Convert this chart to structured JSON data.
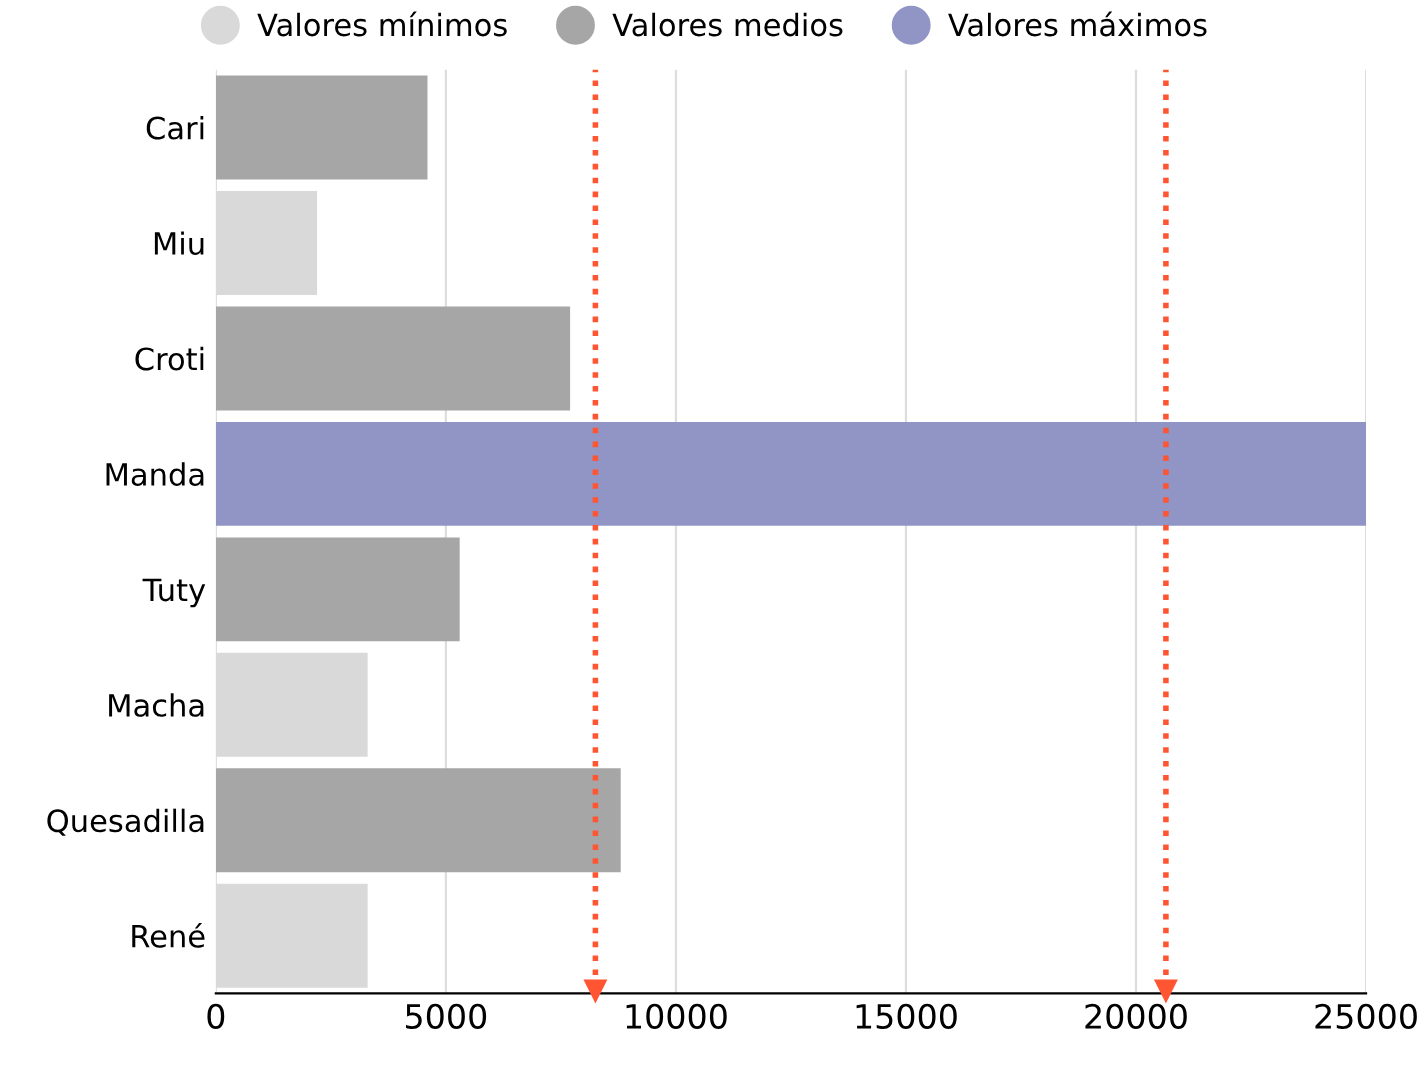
{
  "chart_data": {
    "type": "bar",
    "orientation": "horizontal",
    "categories": [
      "Cari",
      "Miu",
      "Croti",
      "Manda",
      "Tuty",
      "Macha",
      "Quesadilla",
      "René"
    ],
    "series": [
      {
        "name": "Valores mínimos",
        "color": "#d9d9d9",
        "values": [
          null,
          2200,
          null,
          null,
          null,
          3300,
          null,
          3300
        ]
      },
      {
        "name": "Valores medios",
        "color": "#a6a6a6",
        "values": [
          4600,
          null,
          7700,
          null,
          5300,
          null,
          8800,
          null
        ]
      },
      {
        "name": "Valores máximos",
        "color": "#9095c5",
        "values": [
          null,
          null,
          null,
          25000,
          null,
          null,
          null,
          null
        ]
      }
    ],
    "xlim": [
      0,
      25000
    ],
    "xticks": [
      0,
      5000,
      10000,
      15000,
      20000,
      25000
    ],
    "grid": "x",
    "legend": "top",
    "ref_lines": [
      {
        "axis": "x",
        "value": 8250,
        "color": "#ff5533",
        "line_style": "dotted"
      },
      {
        "axis": "x",
        "value": 20650,
        "color": "#ff5533",
        "line_style": "dotted"
      }
    ]
  }
}
